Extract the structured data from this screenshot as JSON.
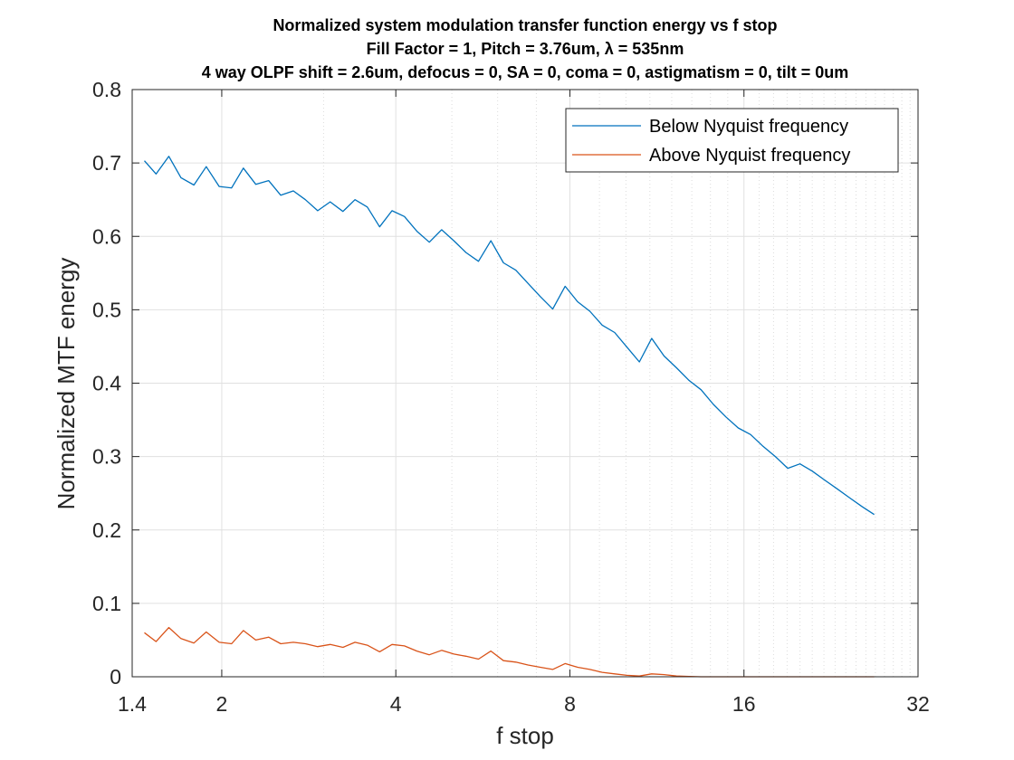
{
  "chart_data": {
    "type": "line",
    "title_lines": [
      "Normalized system modulation transfer function energy vs f stop",
      "Fill Factor = 1, Pitch = 3.76um, λ = 535nm",
      "4 way OLPF shift = 2.6um, defocus = 0, SA = 0, coma = 0, astigmatism = 0, tilt = 0um"
    ],
    "xlabel": "f stop",
    "ylabel": "Normalized MTF energy",
    "x_scale": "log2",
    "xlim": [
      1.4,
      32
    ],
    "ylim": [
      0,
      0.8
    ],
    "x_ticks": [
      1.4,
      2,
      4,
      8,
      16,
      32
    ],
    "x_tick_labels": [
      "1.4",
      "2",
      "4",
      "8",
      "16",
      "32"
    ],
    "y_ticks": [
      0,
      0.1,
      0.2,
      0.3,
      0.4,
      0.5,
      0.6,
      0.7,
      0.8
    ],
    "y_tick_labels": [
      "0",
      "0.1",
      "0.2",
      "0.3",
      "0.4",
      "0.5",
      "0.6",
      "0.7",
      "0.8"
    ],
    "grid": true,
    "legend_position": "top-right",
    "series": [
      {
        "name": "Below Nyquist frequency",
        "color": "#0072BD",
        "x": [
          1.47,
          1.54,
          1.62,
          1.7,
          1.79,
          1.88,
          1.98,
          2.08,
          2.18,
          2.29,
          2.41,
          2.53,
          2.66,
          2.79,
          2.93,
          3.08,
          3.24,
          3.4,
          3.57,
          3.75,
          3.94,
          4.14,
          4.35,
          4.57,
          4.8,
          5.04,
          5.29,
          5.56,
          5.84,
          6.14,
          6.45,
          6.77,
          7.11,
          7.47,
          7.85,
          8.25,
          8.66,
          9.1,
          9.56,
          10.04,
          10.55,
          11.08,
          11.64,
          12.23,
          12.85,
          13.49,
          14.17,
          14.89,
          15.64,
          16.43,
          17.26,
          18.13,
          19.05,
          20.0,
          21.01,
          22.07,
          23.19,
          24.36,
          25.59,
          26.88
        ],
        "y": [
          0.703,
          0.685,
          0.709,
          0.68,
          0.67,
          0.695,
          0.668,
          0.666,
          0.693,
          0.671,
          0.676,
          0.656,
          0.662,
          0.65,
          0.635,
          0.647,
          0.634,
          0.65,
          0.64,
          0.613,
          0.635,
          0.627,
          0.607,
          0.592,
          0.609,
          0.594,
          0.578,
          0.566,
          0.594,
          0.564,
          0.554,
          0.536,
          0.518,
          0.501,
          0.532,
          0.511,
          0.498,
          0.479,
          0.469,
          0.449,
          0.429,
          0.461,
          0.437,
          0.421,
          0.404,
          0.391,
          0.371,
          0.354,
          0.339,
          0.33,
          0.314,
          0.3,
          0.284,
          0.29,
          0.28,
          0.268,
          0.256,
          0.244,
          0.232,
          0.221
        ]
      },
      {
        "name": "Above Nyquist frequency",
        "color": "#D95319",
        "x": [
          1.47,
          1.54,
          1.62,
          1.7,
          1.79,
          1.88,
          1.98,
          2.08,
          2.18,
          2.29,
          2.41,
          2.53,
          2.66,
          2.79,
          2.93,
          3.08,
          3.24,
          3.4,
          3.57,
          3.75,
          3.94,
          4.14,
          4.35,
          4.57,
          4.8,
          5.04,
          5.29,
          5.56,
          5.84,
          6.14,
          6.45,
          6.77,
          7.11,
          7.47,
          7.85,
          8.25,
          8.66,
          9.1,
          9.56,
          10.04,
          10.55,
          11.08,
          11.64,
          12.23,
          12.85,
          13.49,
          14.17,
          14.89,
          15.64,
          16.43,
          17.26,
          18.13,
          19.05,
          20.0,
          21.01,
          22.07,
          23.19,
          24.36,
          25.59,
          26.88
        ],
        "y": [
          0.06,
          0.048,
          0.067,
          0.052,
          0.046,
          0.061,
          0.047,
          0.045,
          0.063,
          0.05,
          0.054,
          0.045,
          0.047,
          0.045,
          0.041,
          0.044,
          0.04,
          0.047,
          0.043,
          0.034,
          0.044,
          0.042,
          0.035,
          0.03,
          0.036,
          0.031,
          0.028,
          0.024,
          0.035,
          0.022,
          0.02,
          0.016,
          0.013,
          0.01,
          0.018,
          0.013,
          0.01,
          0.006,
          0.004,
          0.002,
          0.001,
          0.004,
          0.003,
          0.001,
          0.0005,
          0,
          0,
          0,
          0,
          0,
          0,
          0,
          0,
          0,
          0,
          0,
          0,
          0,
          0,
          0
        ]
      }
    ]
  }
}
